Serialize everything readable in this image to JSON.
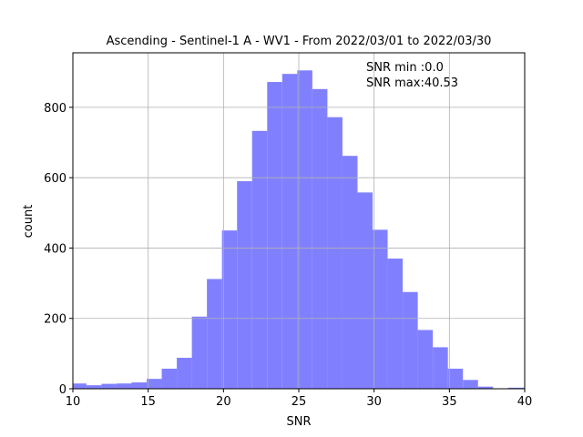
{
  "chart_data": {
    "type": "bar",
    "title": "Ascending - Sentinel-1 A - WV1 - From 2022/03/01 to 2022/03/30",
    "xlabel": "SNR",
    "ylabel": "count",
    "xlim": [
      10,
      40
    ],
    "ylim": [
      0,
      955
    ],
    "xticks": [
      10,
      15,
      20,
      25,
      30,
      35,
      40
    ],
    "yticks": [
      0,
      200,
      400,
      600,
      800
    ],
    "grid": true,
    "bar_color": "#8080ff",
    "bins": [
      {
        "x0": 9.8,
        "x1": 10.9,
        "count": 15
      },
      {
        "x0": 10.9,
        "x1": 11.9,
        "count": 10
      },
      {
        "x0": 11.9,
        "x1": 12.9,
        "count": 14
      },
      {
        "x0": 12.9,
        "x1": 13.9,
        "count": 15
      },
      {
        "x0": 13.9,
        "x1": 14.9,
        "count": 18
      },
      {
        "x0": 14.9,
        "x1": 15.9,
        "count": 28
      },
      {
        "x0": 15.9,
        "x1": 16.9,
        "count": 57
      },
      {
        "x0": 16.9,
        "x1": 17.9,
        "count": 88
      },
      {
        "x0": 17.9,
        "x1": 18.9,
        "count": 205
      },
      {
        "x0": 18.9,
        "x1": 19.9,
        "count": 312
      },
      {
        "x0": 19.9,
        "x1": 20.9,
        "count": 450
      },
      {
        "x0": 20.9,
        "x1": 21.9,
        "count": 590
      },
      {
        "x0": 21.9,
        "x1": 22.9,
        "count": 733
      },
      {
        "x0": 22.9,
        "x1": 23.9,
        "count": 872
      },
      {
        "x0": 23.9,
        "x1": 24.9,
        "count": 895
      },
      {
        "x0": 24.9,
        "x1": 25.9,
        "count": 905
      },
      {
        "x0": 25.9,
        "x1": 26.9,
        "count": 852
      },
      {
        "x0": 26.9,
        "x1": 27.9,
        "count": 772
      },
      {
        "x0": 27.9,
        "x1": 28.9,
        "count": 662
      },
      {
        "x0": 28.9,
        "x1": 29.9,
        "count": 558
      },
      {
        "x0": 29.9,
        "x1": 30.9,
        "count": 452
      },
      {
        "x0": 30.9,
        "x1": 31.9,
        "count": 370
      },
      {
        "x0": 31.9,
        "x1": 32.9,
        "count": 275
      },
      {
        "x0": 32.9,
        "x1": 33.9,
        "count": 167
      },
      {
        "x0": 33.9,
        "x1": 34.9,
        "count": 118
      },
      {
        "x0": 34.9,
        "x1": 35.9,
        "count": 57
      },
      {
        "x0": 35.9,
        "x1": 36.9,
        "count": 25
      },
      {
        "x0": 36.9,
        "x1": 37.9,
        "count": 6
      },
      {
        "x0": 37.9,
        "x1": 38.9,
        "count": 1
      },
      {
        "x0": 38.9,
        "x1": 39.9,
        "count": 3
      },
      {
        "x0": 39.9,
        "x1": 40.9,
        "count": 3
      }
    ],
    "annotations": [
      "SNR min :0.0",
      "SNR max:40.53"
    ]
  }
}
